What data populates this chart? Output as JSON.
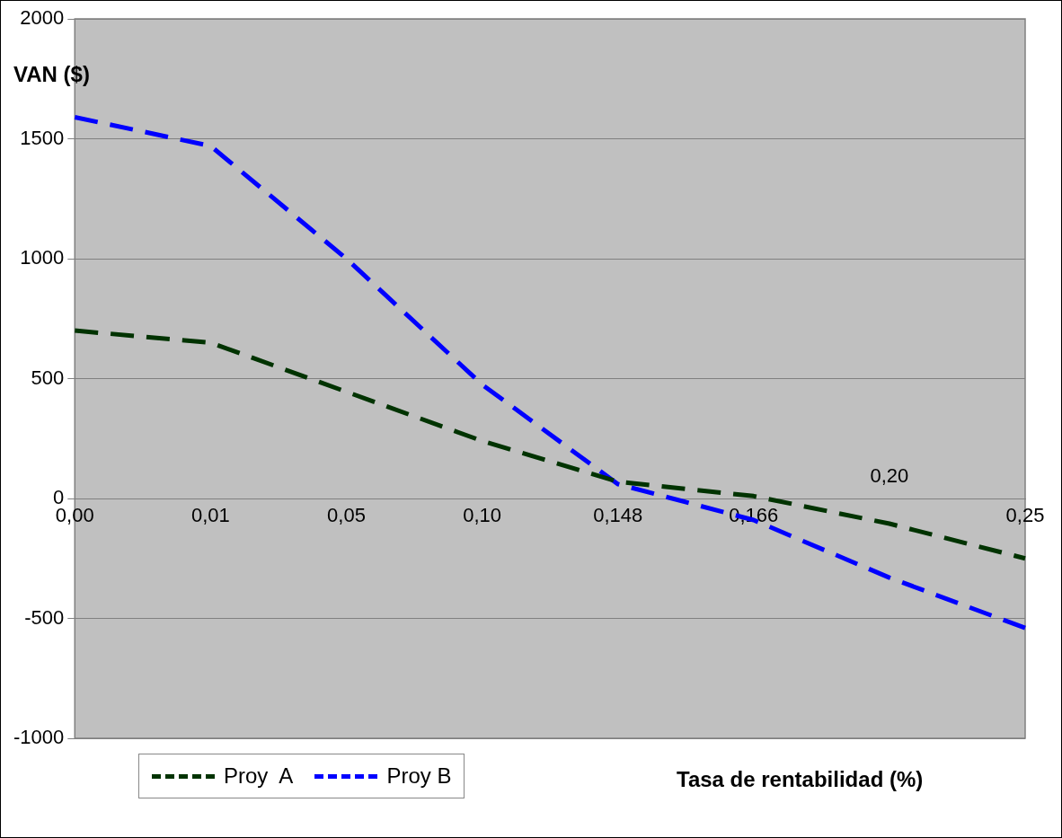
{
  "chart_data": {
    "type": "line",
    "xlabel": "Tasa de rentabilidad (%)",
    "ylabel": "VAN ($)",
    "categories": [
      "0,00",
      "0,01",
      "0,05",
      "0,10",
      "0,148",
      "0,166",
      "0,20",
      "0,25"
    ],
    "series": [
      {
        "name": "Proy  A",
        "color": "#003300",
        "values": [
          700,
          650,
          445,
          240,
          70,
          10,
          -105,
          -250
        ]
      },
      {
        "name": "Proy B",
        "color": "#0000ff",
        "values": [
          1590,
          1470,
          1000,
          475,
          60,
          -90,
          -330,
          -540
        ]
      }
    ],
    "ylim": [
      -1000,
      2000
    ],
    "yticks": [
      -1000,
      -500,
      0,
      500,
      1000,
      1500,
      2000
    ],
    "grid": "y",
    "legend": "bottom left",
    "line_style": "dashed",
    "marker": "none"
  }
}
